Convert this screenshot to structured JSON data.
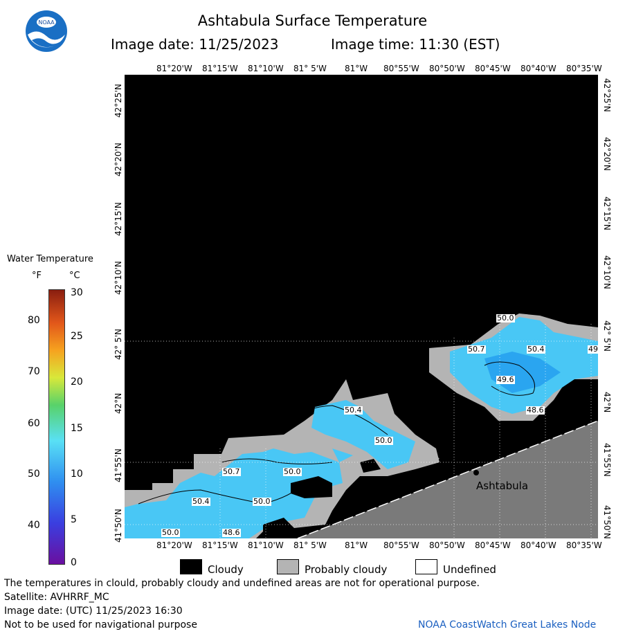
{
  "header": {
    "title": "Ashtabula Surface Temperature",
    "image_date": "Image date: 11/25/2023",
    "image_time": "Image time: 11:30 (EST)",
    "logo_text": "NOAA"
  },
  "map": {
    "lon_ticks_top": [
      "81°20'W",
      "81°15'W",
      "81°10'W",
      "81° 5'W",
      "81°W",
      "80°55'W",
      "80°50'W",
      "80°45'W",
      "80°40'W",
      "80°35'W"
    ],
    "lon_ticks_bottom": [
      "81°20'W",
      "81°15'W",
      "81°10'W",
      "81° 5'W",
      "81°W",
      "80°55'W",
      "80°50'W",
      "80°45'W",
      "80°40'W",
      "80°35'W"
    ],
    "lat_ticks": [
      "42°25'N",
      "42°20'N",
      "42°15'N",
      "42°10'N",
      "42° 5'N",
      "42°N",
      "41°55'N",
      "41°50'N"
    ],
    "city_label": "Ashtabula",
    "contour_labels": [
      "50.0",
      "50.7",
      "50.4",
      "49",
      "49.6",
      "48.6",
      "50.4",
      "50.0",
      "50.7",
      "50.0",
      "50.4",
      "50.0",
      "50.0",
      "48.6"
    ],
    "colors": {
      "cloudy": "#000000",
      "probably_cloudy": "#b4b4b4",
      "land": "#7a7a7a",
      "water": "#49c7f5",
      "water_dark": "#2aa5f0"
    }
  },
  "legend": {
    "title": "Water Temperature",
    "unit_f": "°F",
    "unit_c": "°C",
    "f_ticks": [
      "80",
      "70",
      "60",
      "50",
      "40"
    ],
    "c_ticks": [
      "30",
      "25",
      "20",
      "15",
      "10",
      "5",
      "0"
    ]
  },
  "key": {
    "cloudy": "Cloudy",
    "probably_cloudy": "Probably cloudy",
    "undefined": "Undefined"
  },
  "footer": {
    "line1": "The temperatures in clould, probably cloudy and undefined areas are not for operational purpose.",
    "line2": "Satellite: AVHRRF_MC",
    "line3": "Image date: (UTC) 11/25/2023  16:30",
    "line4": "Not to be used for navigational purpose",
    "credit": "NOAA CoastWatch Great Lakes Node"
  }
}
